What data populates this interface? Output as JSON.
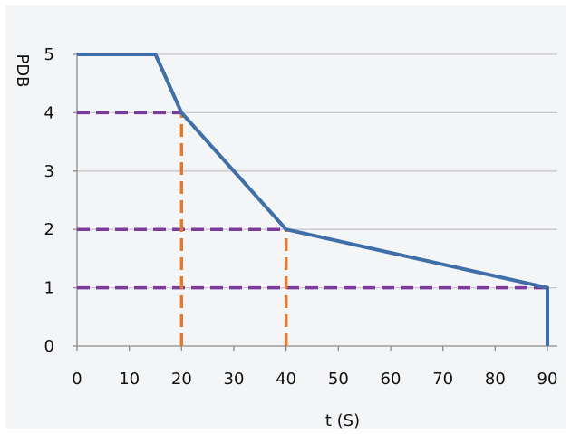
{
  "chart_data": {
    "type": "line",
    "title": "",
    "xlabel": "t (S)",
    "ylabel": "PDB",
    "xlim": [
      0,
      90
    ],
    "ylim": [
      0,
      5
    ],
    "x_ticks": [
      "0",
      "10",
      "20",
      "30",
      "40",
      "50",
      "60",
      "70",
      "80",
      "90"
    ],
    "y_ticks": [
      "0",
      "1",
      "2",
      "3",
      "4",
      "5"
    ],
    "grid": "horizontal",
    "series": [
      {
        "color": "#3f6fa8",
        "points": [
          [
            0,
            5
          ],
          [
            15,
            5
          ],
          [
            20,
            4
          ],
          [
            40,
            2
          ],
          [
            90,
            1
          ],
          [
            90,
            0
          ]
        ]
      }
    ],
    "reference_lines": [
      {
        "orientation": "horizontal",
        "value": 4,
        "from": 0,
        "to": 20,
        "color": "#7a3b9a"
      },
      {
        "orientation": "horizontal",
        "value": 2,
        "from": 0,
        "to": 40,
        "color": "#7a3b9a"
      },
      {
        "orientation": "horizontal",
        "value": 1,
        "from": 0,
        "to": 90,
        "color": "#7a3b9a"
      },
      {
        "orientation": "vertical",
        "value": 20,
        "from": 0,
        "to": 4,
        "color": "#e07b2f"
      },
      {
        "orientation": "vertical",
        "value": 40,
        "from": 0,
        "to": 2,
        "color": "#e07b2f"
      }
    ],
    "colors": {
      "grid": "#c8c8c8",
      "axis": "#8a8a8a"
    }
  }
}
